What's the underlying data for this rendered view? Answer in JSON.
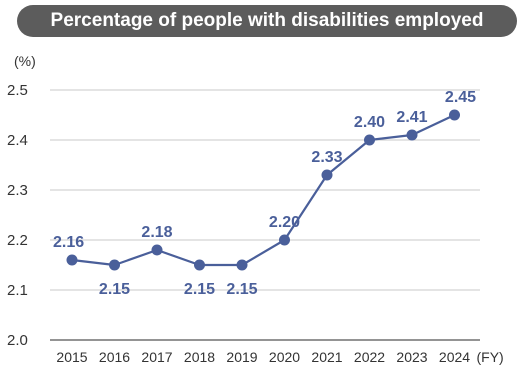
{
  "chart_data": {
    "type": "line",
    "title": "Percentage of people with disabilities employed",
    "ylabel": "(%)",
    "xlabel": "(FY)",
    "x": [
      "2015",
      "2016",
      "2017",
      "2018",
      "2019",
      "2020",
      "2021",
      "2022",
      "2023",
      "2024"
    ],
    "values": [
      2.16,
      2.15,
      2.18,
      2.15,
      2.15,
      2.2,
      2.33,
      2.4,
      2.41,
      2.45
    ],
    "data_labels": [
      "2.16",
      "2.15",
      "2.18",
      "2.15",
      "2.15",
      "2.20",
      "2.33",
      "2.40",
      "2.41",
      "2.45"
    ],
    "label_positions": [
      "above",
      "below",
      "above",
      "below",
      "below",
      "above",
      "above",
      "above",
      "above",
      "above"
    ],
    "ylim": [
      2.0,
      2.5
    ],
    "yticks": [
      "2.0",
      "2.1",
      "2.2",
      "2.3",
      "2.4",
      "2.5"
    ],
    "grid": true,
    "colors": {
      "line": "#4a5f9a",
      "marker": "#4a5f9a",
      "label": "#4a5f9a",
      "title_bg": "#5c5c5c",
      "grid": "#c8c8c8"
    }
  }
}
